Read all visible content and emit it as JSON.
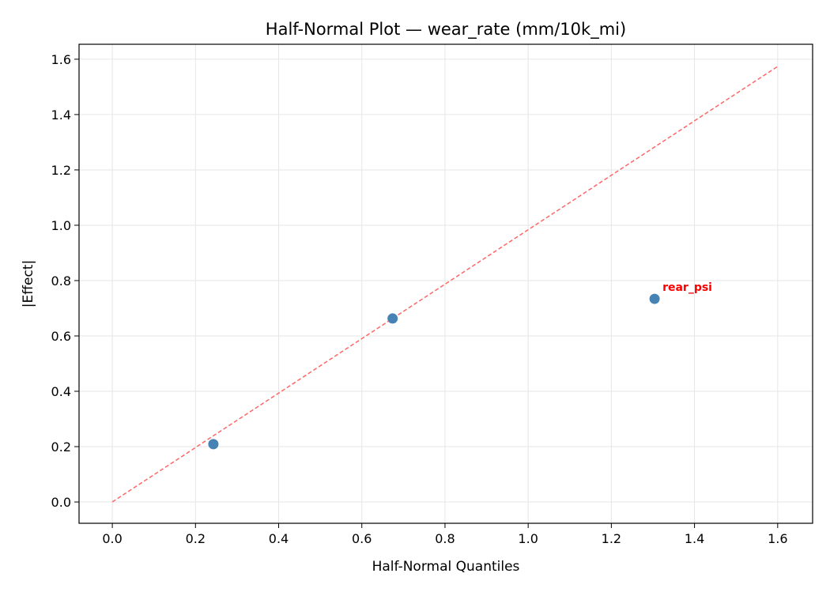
{
  "chart_data": {
    "type": "scatter",
    "title": "Half-Normal Plot — wear_rate (mm/10k_mi)",
    "xlabel": "Half-Normal Quantiles",
    "ylabel": "|Effect|",
    "xlim": [
      -0.08,
      1.684
    ],
    "ylim": [
      -0.077,
      1.654
    ],
    "xticks": [
      "0.0",
      "0.2",
      "0.4",
      "0.6",
      "0.8",
      "1.0",
      "1.2",
      "1.4",
      "1.6"
    ],
    "yticks": [
      "0.0",
      "0.2",
      "0.4",
      "0.6",
      "0.8",
      "1.0",
      "1.2",
      "1.4",
      "1.6"
    ],
    "grid": true,
    "points": [
      {
        "x": 0.243,
        "y": 0.209,
        "label": ""
      },
      {
        "x": 0.674,
        "y": 0.663,
        "label": ""
      },
      {
        "x": 1.304,
        "y": 0.734,
        "label": "rear_psi"
      }
    ],
    "reference_line": {
      "x": [
        0,
        1.6
      ],
      "y": [
        0,
        1.574
      ],
      "style": "dashed"
    },
    "colors": {
      "points": "#4682b4",
      "reference_line": "#ff6666",
      "annotation": "#ff0000",
      "grid": "#e6e6e6"
    }
  }
}
